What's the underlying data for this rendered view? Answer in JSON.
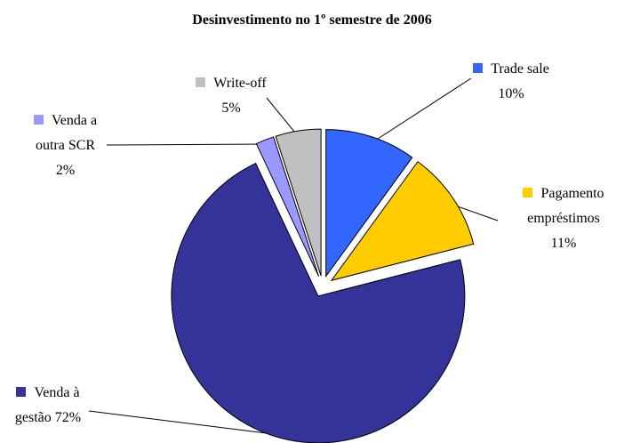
{
  "chart_data": {
    "type": "pie",
    "title": "Desinvestimento no 1º semestre de 2006",
    "categories": [
      "Trade sale",
      "Pagamento empréstimos",
      "Venda à gestão",
      "Venda a outra SCR",
      "Write-off"
    ],
    "values": [
      10,
      11,
      72,
      2,
      5
    ],
    "value_labels": [
      "10%",
      "11%",
      "72%",
      "2%",
      "5%"
    ],
    "colors": [
      "#3366ff",
      "#ffcc00",
      "#333399",
      "#9999ff",
      "#c0c0c0"
    ]
  }
}
